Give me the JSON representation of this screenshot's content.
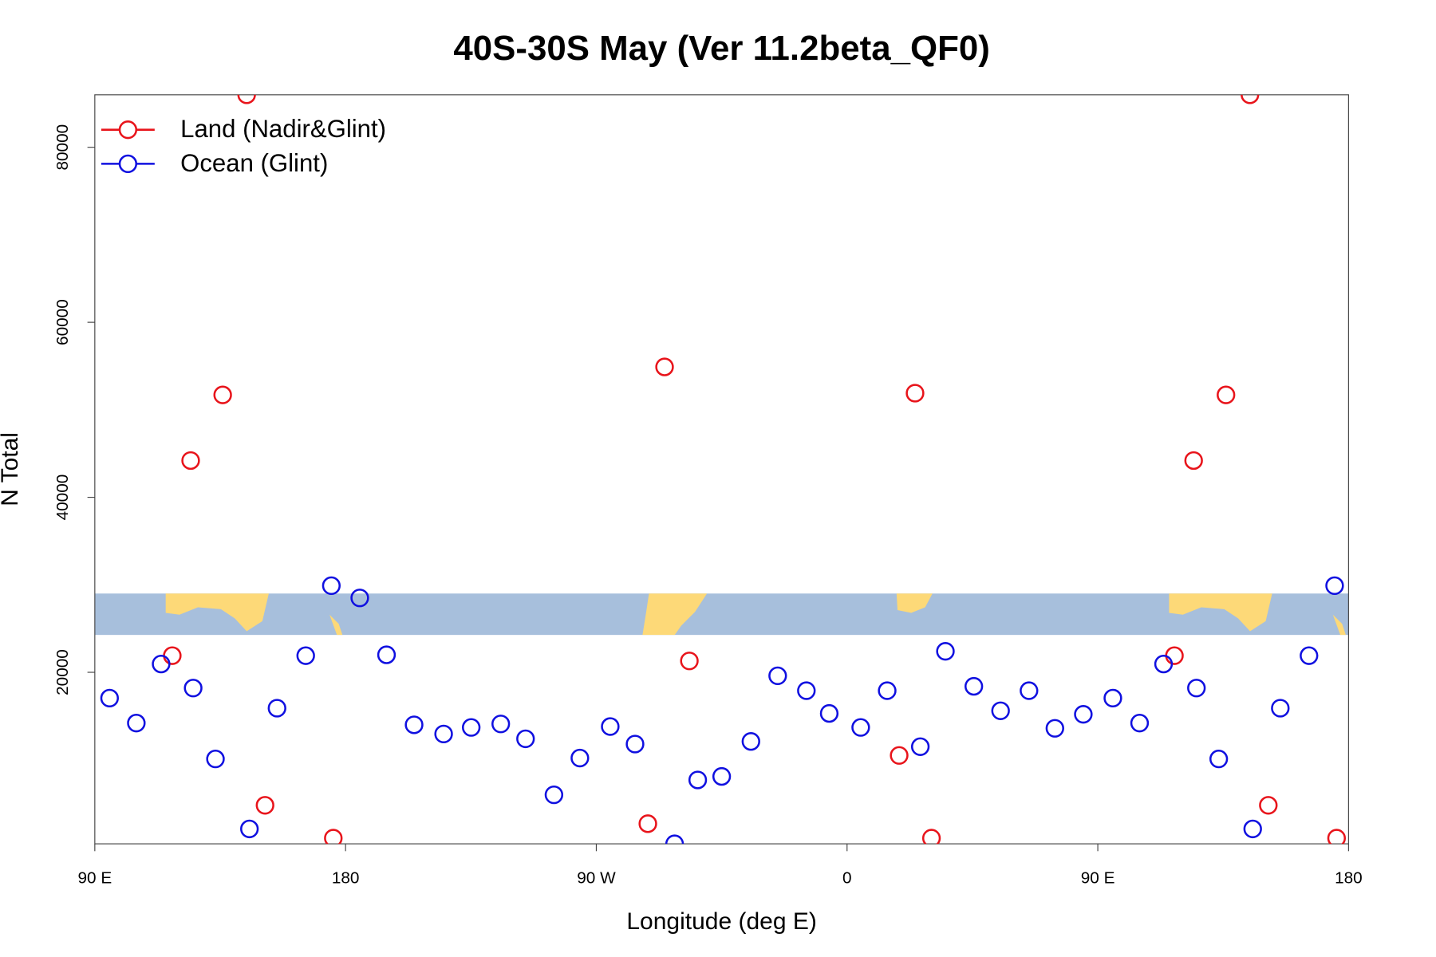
{
  "chart_data": {
    "type": "scatter",
    "title": "40S-30S May (Ver 11.2beta_QF0)",
    "x_label": "Longitude (deg E)",
    "y_label": "N Total",
    "xlim": [
      90,
      540
    ],
    "xticks": [
      {
        "value": 90,
        "label": "90 E"
      },
      {
        "value": 180,
        "label": "180"
      },
      {
        "value": 270,
        "label": "90 W"
      },
      {
        "value": 360,
        "label": "0"
      },
      {
        "value": 450,
        "label": "90 E"
      },
      {
        "value": 540,
        "label": "180"
      }
    ],
    "ylim": [
      400,
      86000
    ],
    "yticks": [
      20000,
      40000,
      60000,
      80000
    ],
    "legend": "top-left",
    "series": [
      {
        "name": "Land (Nadir&Glint)",
        "color": "#e8141b",
        "x": [
          117.8,
          124.4,
          135.9,
          144.5,
          151.1,
          175.6,
          288.5,
          294.5,
          303.4,
          378.7,
          384.4,
          390.3,
          477.5,
          484.4,
          496.0,
          504.6,
          511.2,
          535.7
        ],
        "values": [
          21900,
          44200,
          51700,
          86000,
          4800,
          1050,
          2700,
          54900,
          21300,
          10500,
          51900,
          1050,
          21900,
          44200,
          51700,
          86000,
          4800,
          1050
        ]
      },
      {
        "name": "Ocean (Glint)",
        "color": "#1010e0",
        "x": [
          95.3,
          104.9,
          113.8,
          125.3,
          133.3,
          145.5,
          155.4,
          165.7,
          174.9,
          185.1,
          194.7,
          204.6,
          215.2,
          225.1,
          235.7,
          244.6,
          254.8,
          264.1,
          275.0,
          283.9,
          298.1,
          306.4,
          315.0,
          325.5,
          335.1,
          345.4,
          353.6,
          364.9,
          374.4,
          386.3,
          395.3,
          405.5,
          415.1,
          425.3,
          434.6,
          444.8,
          455.4,
          465.0,
          473.6,
          485.4,
          493.4,
          505.6,
          515.5,
          525.8,
          535.0
        ],
        "values": [
          17050,
          14200,
          20950,
          18200,
          10100,
          2100,
          15900,
          21900,
          29900,
          28500,
          22000,
          14000,
          12950,
          13700,
          14100,
          12400,
          6000,
          10200,
          13800,
          11800,
          400,
          7700,
          8100,
          12100,
          19600,
          17900,
          15300,
          13700,
          17900,
          11500,
          22400,
          18400,
          15600,
          17900,
          13600,
          15200,
          17050,
          14200,
          20950,
          18200,
          10100,
          2100,
          15900,
          21900,
          29900
        ]
      }
    ]
  }
}
